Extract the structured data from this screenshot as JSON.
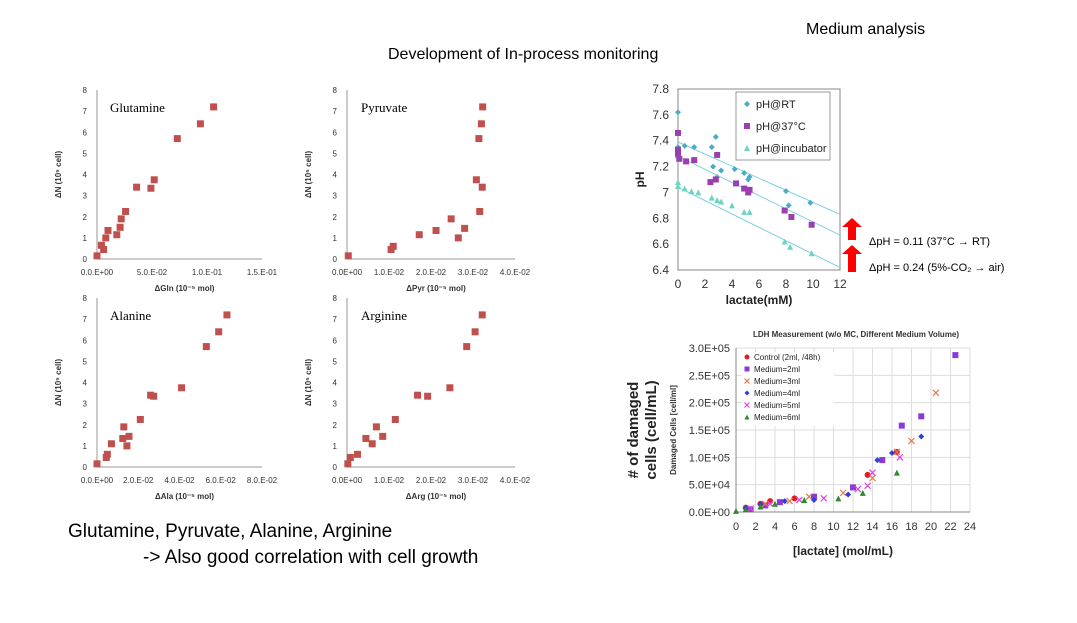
{
  "header": {
    "top_right": "Medium analysis",
    "title": "Development of In-process monitoring"
  },
  "notes": {
    "line1": "Glutamine, Pyruvate, Alanine, Arginine",
    "line2": "-> Also good correlation with cell growth"
  },
  "colors": {
    "marker": "#c0504d",
    "ph_rt": "#4bacc6",
    "ph_37": "#9b3fb0",
    "ph_inc": "#6fd3c2",
    "arrow": "#ff0000"
  },
  "ph_annotations": {
    "line1": "ΔpH = 0.11 (37°C → RT)",
    "line2": "ΔpH = 0.24 (5%-CO₂ → air)"
  },
  "ldh_outer_ylabel": {
    "line1": "# of damaged",
    "line2": "cells  (cell/mL)"
  },
  "chart_data": [
    {
      "id": "glutamine",
      "type": "scatter",
      "label": "Glutamine",
      "xlabel": "ΔGln (10⁻⁵ mol)",
      "ylabel": "ΔN (10⁵ cell)",
      "xlim": [
        0,
        0.15
      ],
      "ylim": [
        0,
        8
      ],
      "xticks": [
        "0.0.E+00",
        "5.0.E-02",
        "1.0.E-01",
        "1.5.E-01"
      ],
      "yticks": [
        "0",
        "1",
        "2",
        "3",
        "4",
        "5",
        "6",
        "7",
        "8"
      ],
      "points": [
        [
          0.0,
          0.15
        ],
        [
          0.004,
          0.65
        ],
        [
          0.006,
          0.45
        ],
        [
          0.008,
          1.0
        ],
        [
          0.01,
          1.35
        ],
        [
          0.018,
          1.15
        ],
        [
          0.021,
          1.5
        ],
        [
          0.022,
          1.9
        ],
        [
          0.026,
          2.25
        ],
        [
          0.036,
          3.4
        ],
        [
          0.049,
          3.35
        ],
        [
          0.052,
          3.75
        ],
        [
          0.073,
          5.7
        ],
        [
          0.094,
          6.4
        ],
        [
          0.106,
          7.2
        ]
      ]
    },
    {
      "id": "pyruvate",
      "type": "scatter",
      "label": "Pyruvate",
      "xlabel": "ΔPyr (10⁻⁵ mol)",
      "ylabel": "ΔN (10⁵ cell)",
      "xlim": [
        0,
        0.04
      ],
      "ylim": [
        0,
        8
      ],
      "xticks": [
        "0.0E+00",
        "1.0.E-02",
        "2.0.E-02",
        "3.0.E-02",
        "4.0.E-02"
      ],
      "yticks": [
        "0",
        "1",
        "2",
        "3",
        "4",
        "5",
        "6",
        "7",
        "8"
      ],
      "points": [
        [
          0.0003,
          0.15
        ],
        [
          0.0105,
          0.45
        ],
        [
          0.011,
          0.6
        ],
        [
          0.0172,
          1.15
        ],
        [
          0.0212,
          1.35
        ],
        [
          0.0248,
          1.9
        ],
        [
          0.0265,
          1.0
        ],
        [
          0.028,
          1.45
        ],
        [
          0.0308,
          3.75
        ],
        [
          0.0314,
          5.7
        ],
        [
          0.0316,
          2.25
        ],
        [
          0.0322,
          3.4
        ],
        [
          0.032,
          6.4
        ],
        [
          0.0323,
          7.2
        ]
      ]
    },
    {
      "id": "alanine",
      "type": "scatter",
      "label": "Alanine",
      "xlabel": "ΔAla (10⁻⁵ mol)",
      "ylabel": "ΔN (10⁵ cell)",
      "xlim": [
        0,
        0.08
      ],
      "ylim": [
        0,
        8
      ],
      "xticks": [
        "0.0.E+00",
        "2.0.E-02",
        "4.0.E-02",
        "6.0.E-02",
        "8.0.E-02"
      ],
      "yticks": [
        "0",
        "1",
        "2",
        "3",
        "4",
        "5",
        "6",
        "7",
        "8"
      ],
      "points": [
        [
          0.0,
          0.15
        ],
        [
          0.0045,
          0.45
        ],
        [
          0.005,
          0.6
        ],
        [
          0.007,
          1.1
        ],
        [
          0.0125,
          1.35
        ],
        [
          0.013,
          1.9
        ],
        [
          0.0145,
          1.0
        ],
        [
          0.0155,
          1.45
        ],
        [
          0.021,
          2.25
        ],
        [
          0.026,
          3.4
        ],
        [
          0.0275,
          3.35
        ],
        [
          0.041,
          3.75
        ],
        [
          0.053,
          5.7
        ],
        [
          0.059,
          6.4
        ],
        [
          0.063,
          7.2
        ]
      ]
    },
    {
      "id": "arginine",
      "type": "scatter",
      "label": "Arginine",
      "xlabel": "ΔArg (10⁻⁵ mol)",
      "ylabel": "ΔN (10⁵ cell)",
      "xlim": [
        0,
        0.04
      ],
      "ylim": [
        0,
        8
      ],
      "xticks": [
        "0.0E+00",
        "1.0.E-02",
        "2.0.E-02",
        "3.0.E-02",
        "4.0.E-02"
      ],
      "yticks": [
        "0",
        "1",
        "2",
        "3",
        "4",
        "5",
        "6",
        "7",
        "8"
      ],
      "points": [
        [
          0.0002,
          0.15
        ],
        [
          0.0008,
          0.45
        ],
        [
          0.0025,
          0.6
        ],
        [
          0.0045,
          1.35
        ],
        [
          0.006,
          1.1
        ],
        [
          0.007,
          1.9
        ],
        [
          0.0085,
          1.45
        ],
        [
          0.0115,
          2.25
        ],
        [
          0.0168,
          3.4
        ],
        [
          0.0192,
          3.35
        ],
        [
          0.0245,
          3.75
        ],
        [
          0.0285,
          5.7
        ],
        [
          0.0305,
          6.4
        ],
        [
          0.0322,
          7.2
        ]
      ]
    },
    {
      "id": "ph",
      "type": "scatter",
      "xlabel": "lactate(mM)",
      "ylabel": "pH",
      "xlim": [
        0,
        12
      ],
      "ylim": [
        6.4,
        7.8
      ],
      "xticks": [
        "0",
        "2",
        "4",
        "6",
        "8",
        "10",
        "12"
      ],
      "yticks": [
        "6.4",
        "6.6",
        "6.8",
        "7",
        "7.2",
        "7.4",
        "7.6",
        "7.8"
      ],
      "series": [
        {
          "name": "pH@RT",
          "marker": "diamond",
          "color": "#4bacc6",
          "points": [
            [
              0,
              7.62
            ],
            [
              0,
              7.35
            ],
            [
              0,
              7.27
            ],
            [
              0.5,
              7.36
            ],
            [
              1.2,
              7.35
            ],
            [
              2.5,
              7.35
            ],
            [
              2.8,
              7.43
            ],
            [
              2.6,
              7.2
            ],
            [
              2.9,
              7.12
            ],
            [
              3.2,
              7.17
            ],
            [
              4.2,
              7.18
            ],
            [
              4.9,
              7.15
            ],
            [
              5.2,
              7.1
            ],
            [
              5.3,
              7.12
            ],
            [
              8.0,
              7.01
            ],
            [
              8.2,
              6.9
            ],
            [
              9.8,
              6.92
            ]
          ],
          "trend": [
            [
              0,
              7.39
            ],
            [
              12,
              6.83
            ]
          ]
        },
        {
          "name": "pH@37°C",
          "marker": "square",
          "color": "#9b3fb0",
          "points": [
            [
              0,
              7.46
            ],
            [
              0,
              7.33
            ],
            [
              0,
              7.3
            ],
            [
              0.1,
              7.26
            ],
            [
              0.6,
              7.24
            ],
            [
              1.2,
              7.25
            ],
            [
              2.4,
              7.08
            ],
            [
              2.8,
              7.1
            ],
            [
              2.9,
              7.29
            ],
            [
              4.3,
              7.07
            ],
            [
              4.9,
              7.03
            ],
            [
              5.2,
              7.0
            ],
            [
              5.3,
              7.02
            ],
            [
              7.9,
              6.86
            ],
            [
              8.4,
              6.81
            ],
            [
              9.9,
              6.75
            ]
          ],
          "trend": [
            [
              0,
              7.28
            ],
            [
              12,
              6.67
            ]
          ]
        },
        {
          "name": "pH@incubator",
          "marker": "triangle",
          "color": "#6fd3c2",
          "points": [
            [
              0,
              7.08
            ],
            [
              0,
              7.05
            ],
            [
              0.5,
              7.03
            ],
            [
              1.0,
              7.01
            ],
            [
              1.5,
              7.0
            ],
            [
              2.5,
              6.96
            ],
            [
              2.9,
              6.94
            ],
            [
              3.2,
              6.93
            ],
            [
              4.0,
              6.9
            ],
            [
              4.9,
              6.85
            ],
            [
              5.3,
              6.85
            ],
            [
              7.9,
              6.62
            ],
            [
              8.3,
              6.58
            ],
            [
              9.9,
              6.53
            ]
          ],
          "trend": [
            [
              0,
              7.04
            ],
            [
              12,
              6.42
            ]
          ]
        }
      ]
    },
    {
      "id": "ldh",
      "type": "scatter",
      "title": "LDH Measurement (w/o MC, Different Medium Volume)",
      "xlabel": "[lactate] (mol/mL)",
      "ylabel": "Damaged Cells [cell/ml]",
      "xlim": [
        0,
        24
      ],
      "ylim": [
        0,
        300000
      ],
      "xticks": [
        "0",
        "2",
        "4",
        "6",
        "8",
        "10",
        "12",
        "14",
        "16",
        "18",
        "20",
        "22",
        "24"
      ],
      "yticks": [
        "0.0E+00",
        "5.0E+04",
        "1.0E+05",
        "1.5E+05",
        "2.0E+05",
        "2.5E+05",
        "3.0E+05"
      ],
      "series": [
        {
          "name": "Control (2ml, /48h)",
          "marker": "circle",
          "color": "#e02020",
          "points": [
            [
              1.0,
              8000
            ],
            [
              2.5,
              15000
            ],
            [
              3.5,
              20000
            ],
            [
              6.0,
              25000
            ],
            [
              13.5,
              68000
            ],
            [
              16.5,
              110000
            ]
          ]
        },
        {
          "name": "Medium=2ml",
          "marker": "square",
          "color": "#8a3ad8",
          "points": [
            [
              1.5,
              5000
            ],
            [
              3.0,
              12000
            ],
            [
              4.5,
              18000
            ],
            [
              8.0,
              28000
            ],
            [
              12.0,
              45000
            ],
            [
              15.0,
              95000
            ],
            [
              17.0,
              158000
            ],
            [
              19.0,
              175000
            ],
            [
              22.5,
              287000
            ]
          ]
        },
        {
          "name": "Medium=3ml",
          "marker": "x",
          "color": "#e07a50",
          "points": [
            [
              1.0,
              5000
            ],
            [
              3.0,
              15000
            ],
            [
              5.5,
              20000
            ],
            [
              7.5,
              28000
            ],
            [
              11.0,
              35000
            ],
            [
              14.0,
              62000
            ],
            [
              16.5,
              110000
            ],
            [
              18.0,
              130000
            ],
            [
              20.5,
              218000
            ]
          ]
        },
        {
          "name": "Medium=4ml",
          "marker": "diamond",
          "color": "#3040d0",
          "points": [
            [
              1.0,
              7000
            ],
            [
              2.5,
              14000
            ],
            [
              5.0,
              20000
            ],
            [
              8.0,
              22000
            ],
            [
              11.5,
              32000
            ],
            [
              14.5,
              95000
            ],
            [
              16.0,
              108000
            ],
            [
              19.0,
              138000
            ]
          ]
        },
        {
          "name": "Medium=5ml",
          "marker": "x",
          "color": "#e040e0",
          "points": [
            [
              1.5,
              6000
            ],
            [
              3.5,
              15000
            ],
            [
              6.5,
              22000
            ],
            [
              9.0,
              25000
            ],
            [
              12.5,
              42000
            ],
            [
              13.5,
              48000
            ],
            [
              14.0,
              72000
            ],
            [
              16.8,
              100000
            ]
          ]
        },
        {
          "name": "Medium=6ml",
          "marker": "triangle",
          "color": "#2e8b2e",
          "points": [
            [
              0,
              2000
            ],
            [
              1.0,
              5000
            ],
            [
              2.5,
              10000
            ],
            [
              4.0,
              15000
            ],
            [
              7.0,
              22000
            ],
            [
              10.5,
              25000
            ],
            [
              13.0,
              35000
            ],
            [
              16.5,
              72000
            ]
          ]
        }
      ]
    }
  ]
}
